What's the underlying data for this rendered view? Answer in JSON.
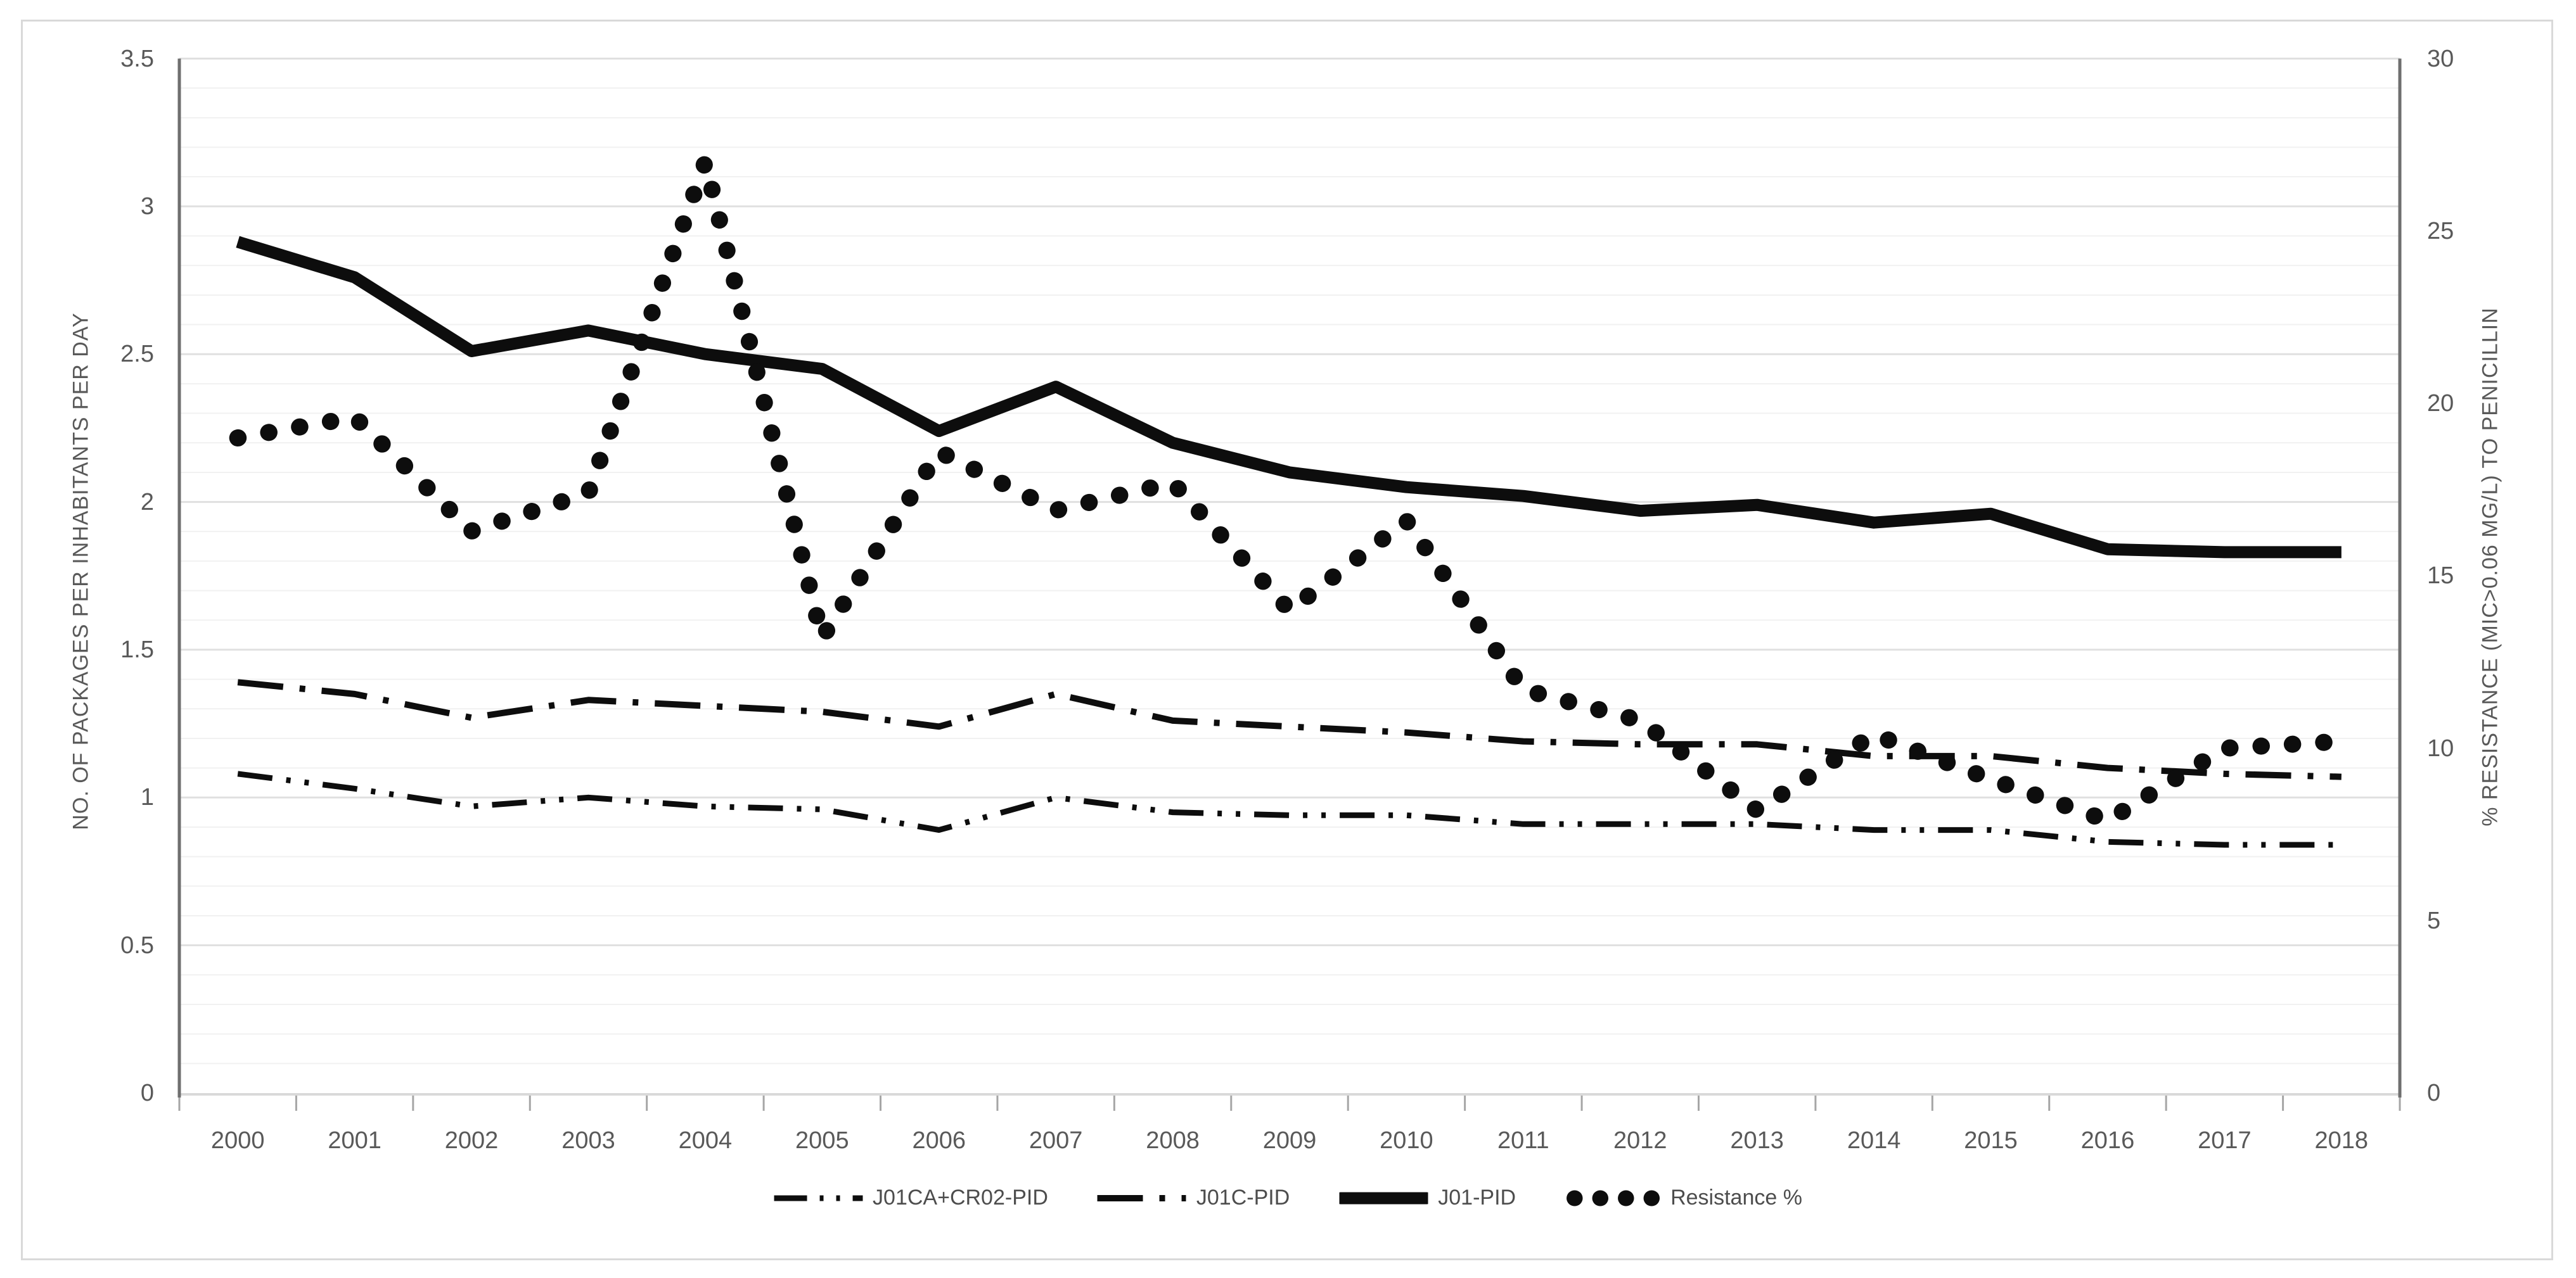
{
  "chart_data": {
    "type": "line",
    "title": "",
    "categories": [
      "2000",
      "2001",
      "2002",
      "2003",
      "2004",
      "2005",
      "2006",
      "2007",
      "2008",
      "2009",
      "2010",
      "2011",
      "2012",
      "2013",
      "2014",
      "2015",
      "2016",
      "2017",
      "2018"
    ],
    "series": [
      {
        "name": "J01CA+CR02-PID",
        "axis": "left",
        "style": "dash-dot-dot",
        "values": [
          1.08,
          1.03,
          0.97,
          1.0,
          0.97,
          0.96,
          0.89,
          1.0,
          0.95,
          0.94,
          0.94,
          0.91,
          0.91,
          0.91,
          0.89,
          0.89,
          0.85,
          0.84,
          0.84
        ]
      },
      {
        "name": "J01C-PID",
        "axis": "left",
        "style": "dash-dot",
        "values": [
          1.39,
          1.35,
          1.27,
          1.33,
          1.31,
          1.29,
          1.24,
          1.35,
          1.26,
          1.24,
          1.22,
          1.19,
          1.18,
          1.18,
          1.14,
          1.14,
          1.1,
          1.08,
          1.07
        ]
      },
      {
        "name": "J01-PID",
        "axis": "left",
        "style": "solid-thick",
        "values": [
          2.88,
          2.76,
          2.51,
          2.58,
          2.5,
          2.45,
          2.24,
          2.39,
          2.2,
          2.1,
          2.05,
          2.02,
          1.97,
          1.99,
          1.93,
          1.96,
          1.84,
          1.83,
          1.83
        ]
      },
      {
        "name": "Resistance %",
        "axis": "right",
        "style": "round-dotted",
        "values": [
          19.0,
          19.6,
          16.3,
          17.4,
          27.0,
          13.2,
          18.6,
          16.9,
          17.7,
          14.0,
          16.6,
          11.7,
          10.8,
          8.2,
          10.4,
          9.1,
          7.9,
          10.0,
          10.2
        ]
      }
    ],
    "left_axis": {
      "title": "NO. OF PACKAGES PER INHABITANTS PER DAY",
      "tick_labels": [
        "0",
        "0.5",
        "1",
        "1.5",
        "2",
        "2.5",
        "3",
        "3.5"
      ],
      "range": [
        0,
        3.5
      ]
    },
    "right_axis": {
      "title": "% RESISTANCE (MIC>0.06 MG/L) TO PENICILLIN",
      "tick_labels": [
        "0",
        "5",
        "10",
        "15",
        "20",
        "25",
        "30"
      ],
      "range": [
        0,
        30
      ]
    },
    "xlabel": "",
    "grid": "horizontal, minor every 0.1, major every 0.5",
    "legend_position": "bottom",
    "series_color": "#0d0d0d"
  }
}
